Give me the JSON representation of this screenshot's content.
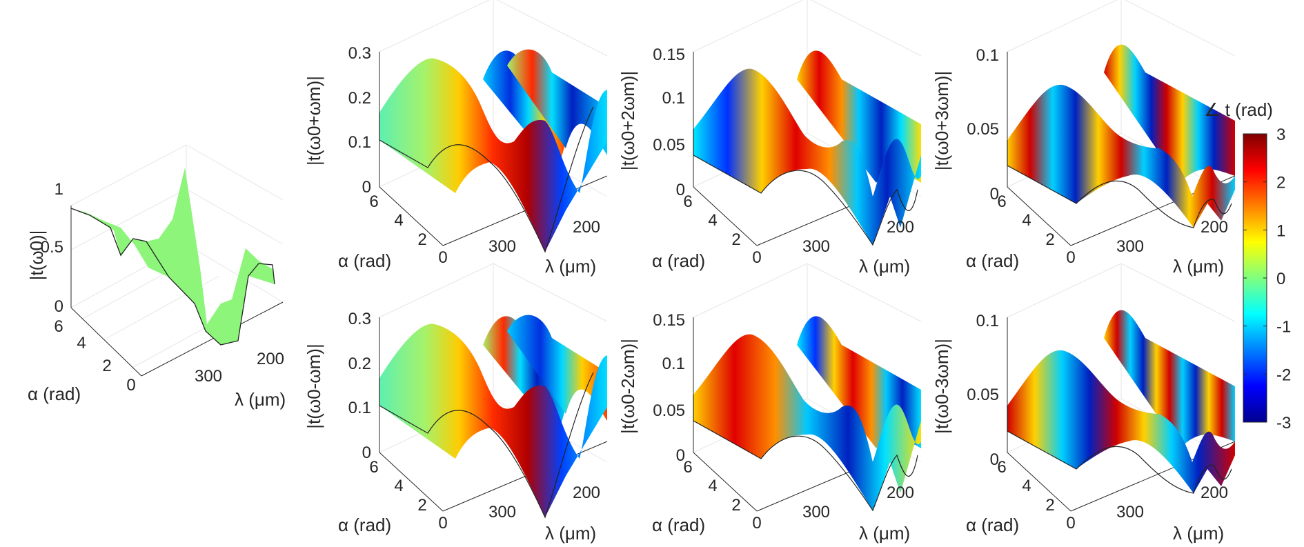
{
  "chart_data": [
    {
      "type": "surface",
      "panel": "t0",
      "zlabel": "|t(ω0)|",
      "xlabel": "λ (μm)",
      "ylabel": "α (rad)",
      "zlim": [
        0,
        1
      ],
      "zticks": [
        "0",
        "0.5",
        "1"
      ],
      "xticks": [
        "300",
        "200"
      ],
      "yticks": [
        "0",
        "2",
        "4",
        "6"
      ],
      "phase_color": "constant (green, ∠t ≈ 0)",
      "profile_vs_lambda": {
        "lambda_um": [
          370,
          340,
          310,
          290,
          270,
          250,
          230,
          215,
          200
        ],
        "magnitude": [
          0.8,
          0.55,
          0.42,
          0.55,
          0.2,
          1.0,
          0.15,
          0.45,
          0.62
        ]
      }
    },
    {
      "type": "surface",
      "panel": "p1",
      "zlabel": "|t(ω0+ωm)|",
      "xlabel": "λ (μm)",
      "ylabel": "α (rad)",
      "zlim": [
        0,
        0.3
      ],
      "zticks": [
        "0",
        "0.1",
        "0.2",
        "0.3"
      ],
      "xticks": [
        "300",
        "200"
      ],
      "yticks": [
        "0",
        "2",
        "4",
        "6"
      ],
      "phase_period_alpha_rad": 6.283
    },
    {
      "type": "surface",
      "panel": "p2",
      "zlabel": "|t(ω0+2ωm)|",
      "xlabel": "λ (μm)",
      "ylabel": "α (rad)",
      "zlim": [
        0,
        0.15
      ],
      "zticks": [
        "0",
        "0.05",
        "0.1",
        "0.15"
      ],
      "xticks": [
        "300",
        "200"
      ],
      "yticks": [
        "0",
        "2",
        "4",
        "6"
      ],
      "phase_period_alpha_rad": 3.142
    },
    {
      "type": "surface",
      "panel": "p3",
      "zlabel": "|t(ω0+3ωm)|",
      "xlabel": "λ (μm)",
      "ylabel": "α (rad)",
      "zlim": [
        0,
        0.1
      ],
      "zticks": [
        "0",
        "0.05",
        "0.1"
      ],
      "xticks": [
        "300",
        "200"
      ],
      "yticks": [
        "0",
        "2",
        "4",
        "6"
      ],
      "phase_period_alpha_rad": 2.094
    },
    {
      "type": "surface",
      "panel": "m1",
      "zlabel": "|t(ω0-ωm)|",
      "xlabel": "λ (μm)",
      "ylabel": "α (rad)",
      "zlim": [
        0,
        0.3
      ],
      "zticks": [
        "0",
        "0.1",
        "0.2",
        "0.3"
      ],
      "xticks": [
        "300",
        "200"
      ],
      "yticks": [
        "0",
        "2",
        "4",
        "6"
      ],
      "phase_period_alpha_rad": 6.283
    },
    {
      "type": "surface",
      "panel": "m2",
      "zlabel": "|t(ω0-2ωm)|",
      "xlabel": "λ (μm)",
      "ylabel": "α (rad)",
      "zlim": [
        0,
        0.15
      ],
      "zticks": [
        "0",
        "0.05",
        "0.1",
        "0.15"
      ],
      "xticks": [
        "300",
        "200"
      ],
      "yticks": [
        "0",
        "2",
        "4",
        "6"
      ],
      "phase_period_alpha_rad": 3.142
    },
    {
      "type": "surface",
      "panel": "m3",
      "zlabel": "|t(ω0-3ωm)|",
      "xlabel": "λ (μm)",
      "ylabel": "α (rad)",
      "zlim": [
        0,
        0.1
      ],
      "zticks": [
        "0",
        "0.05",
        "0.1"
      ],
      "xticks": [
        "300",
        "200"
      ],
      "yticks": [
        "0",
        "2",
        "4",
        "6"
      ],
      "phase_period_alpha_rad": 2.094
    }
  ],
  "colorbar": {
    "title": "∠ t (rad)",
    "ticks": [
      "3",
      "2",
      "1",
      "0",
      "-1",
      "-2",
      "-3"
    ],
    "range": [
      -3,
      3
    ],
    "colormap": "jet"
  }
}
